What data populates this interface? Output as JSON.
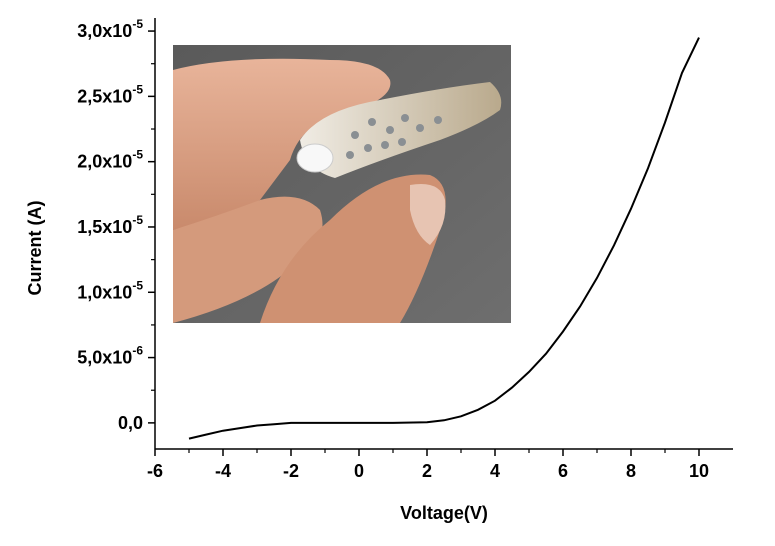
{
  "chart_data": {
    "type": "line",
    "xlabel": "Voltage(V)",
    "ylabel": "Current (A)",
    "xlim": [
      -6,
      11
    ],
    "ylim": [
      -2e-06,
      3.1e-05
    ],
    "x_ticks": [
      {
        "value": -6,
        "label": "-6"
      },
      {
        "value": -4,
        "label": "-4"
      },
      {
        "value": -2,
        "label": "-2"
      },
      {
        "value": 0,
        "label": "0"
      },
      {
        "value": 2,
        "label": "2"
      },
      {
        "value": 4,
        "label": "4"
      },
      {
        "value": 6,
        "label": "6"
      },
      {
        "value": 8,
        "label": "8"
      },
      {
        "value": 10,
        "label": "10"
      }
    ],
    "y_ticks": [
      {
        "value": 0,
        "label": "0,0",
        "exp": ""
      },
      {
        "value": 5e-06,
        "label": "5,0x10",
        "exp": "-6"
      },
      {
        "value": 1e-05,
        "label": "1,0x10",
        "exp": "-5"
      },
      {
        "value": 1.5e-05,
        "label": "1,5x10",
        "exp": "-5"
      },
      {
        "value": 2e-05,
        "label": "2,0x10",
        "exp": "-5"
      },
      {
        "value": 2.5e-05,
        "label": "2,5x10",
        "exp": "-5"
      },
      {
        "value": 3e-05,
        "label": "3,0x10",
        "exp": "-5"
      }
    ],
    "series": [
      {
        "color": "#000000",
        "x": [
          -5,
          -4.5,
          -4,
          -3.5,
          -3,
          -2.5,
          -2,
          -1,
          0,
          1,
          2,
          2.5,
          3,
          3.5,
          4,
          4.5,
          5,
          5.5,
          6,
          6.5,
          7,
          7.5,
          8,
          8.5,
          9,
          9.5,
          10
        ],
        "y": [
          -1.2e-06,
          -9e-07,
          -6e-07,
          -4e-07,
          -2e-07,
          -1e-07,
          0,
          0,
          0,
          0,
          5e-08,
          2e-07,
          5e-07,
          1e-06,
          1.7e-06,
          2.7e-06,
          3.9e-06,
          5.3e-06,
          7e-06,
          8.9e-06,
          1.11e-05,
          1.36e-05,
          1.64e-05,
          1.95e-05,
          2.3e-05,
          2.68e-05,
          2.95e-05
        ]
      }
    ]
  }
}
